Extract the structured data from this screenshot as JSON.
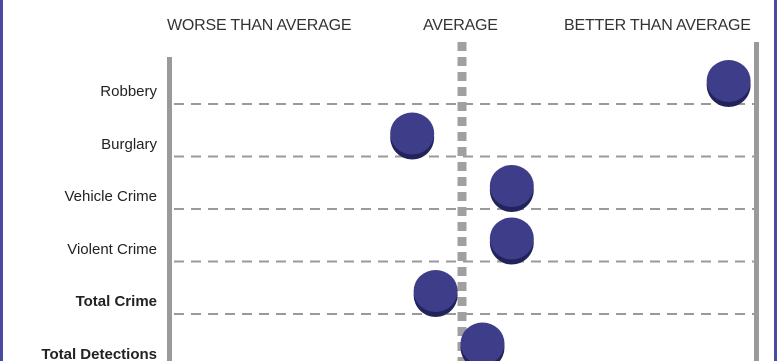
{
  "chart_data": {
    "type": "scatter",
    "title": "",
    "xlabel": "",
    "ylabel": "",
    "column_headers": [
      "WORSE THAN AVERAGE",
      "AVERAGE",
      "BETTER THAN AVERAGE"
    ],
    "xlim": [
      -1,
      1
    ],
    "grid": true,
    "categories": [
      "Robbery",
      "Burglary",
      "Vehicle Crime",
      "Violent Crime",
      "Total Crime",
      "Total Detections"
    ],
    "bold_categories": [
      "Total Crime",
      "Total Detections"
    ],
    "values": [
      0.91,
      -0.17,
      0.17,
      0.17,
      -0.09,
      0.07
    ],
    "colors": {
      "marker": "#3d3d8a",
      "marker_shadow": "#23235c",
      "gridline": "#9a9a9a",
      "axis": "#9a9a9a",
      "average_line": "#a0a0a0",
      "frame": "#4a4aa0"
    }
  }
}
